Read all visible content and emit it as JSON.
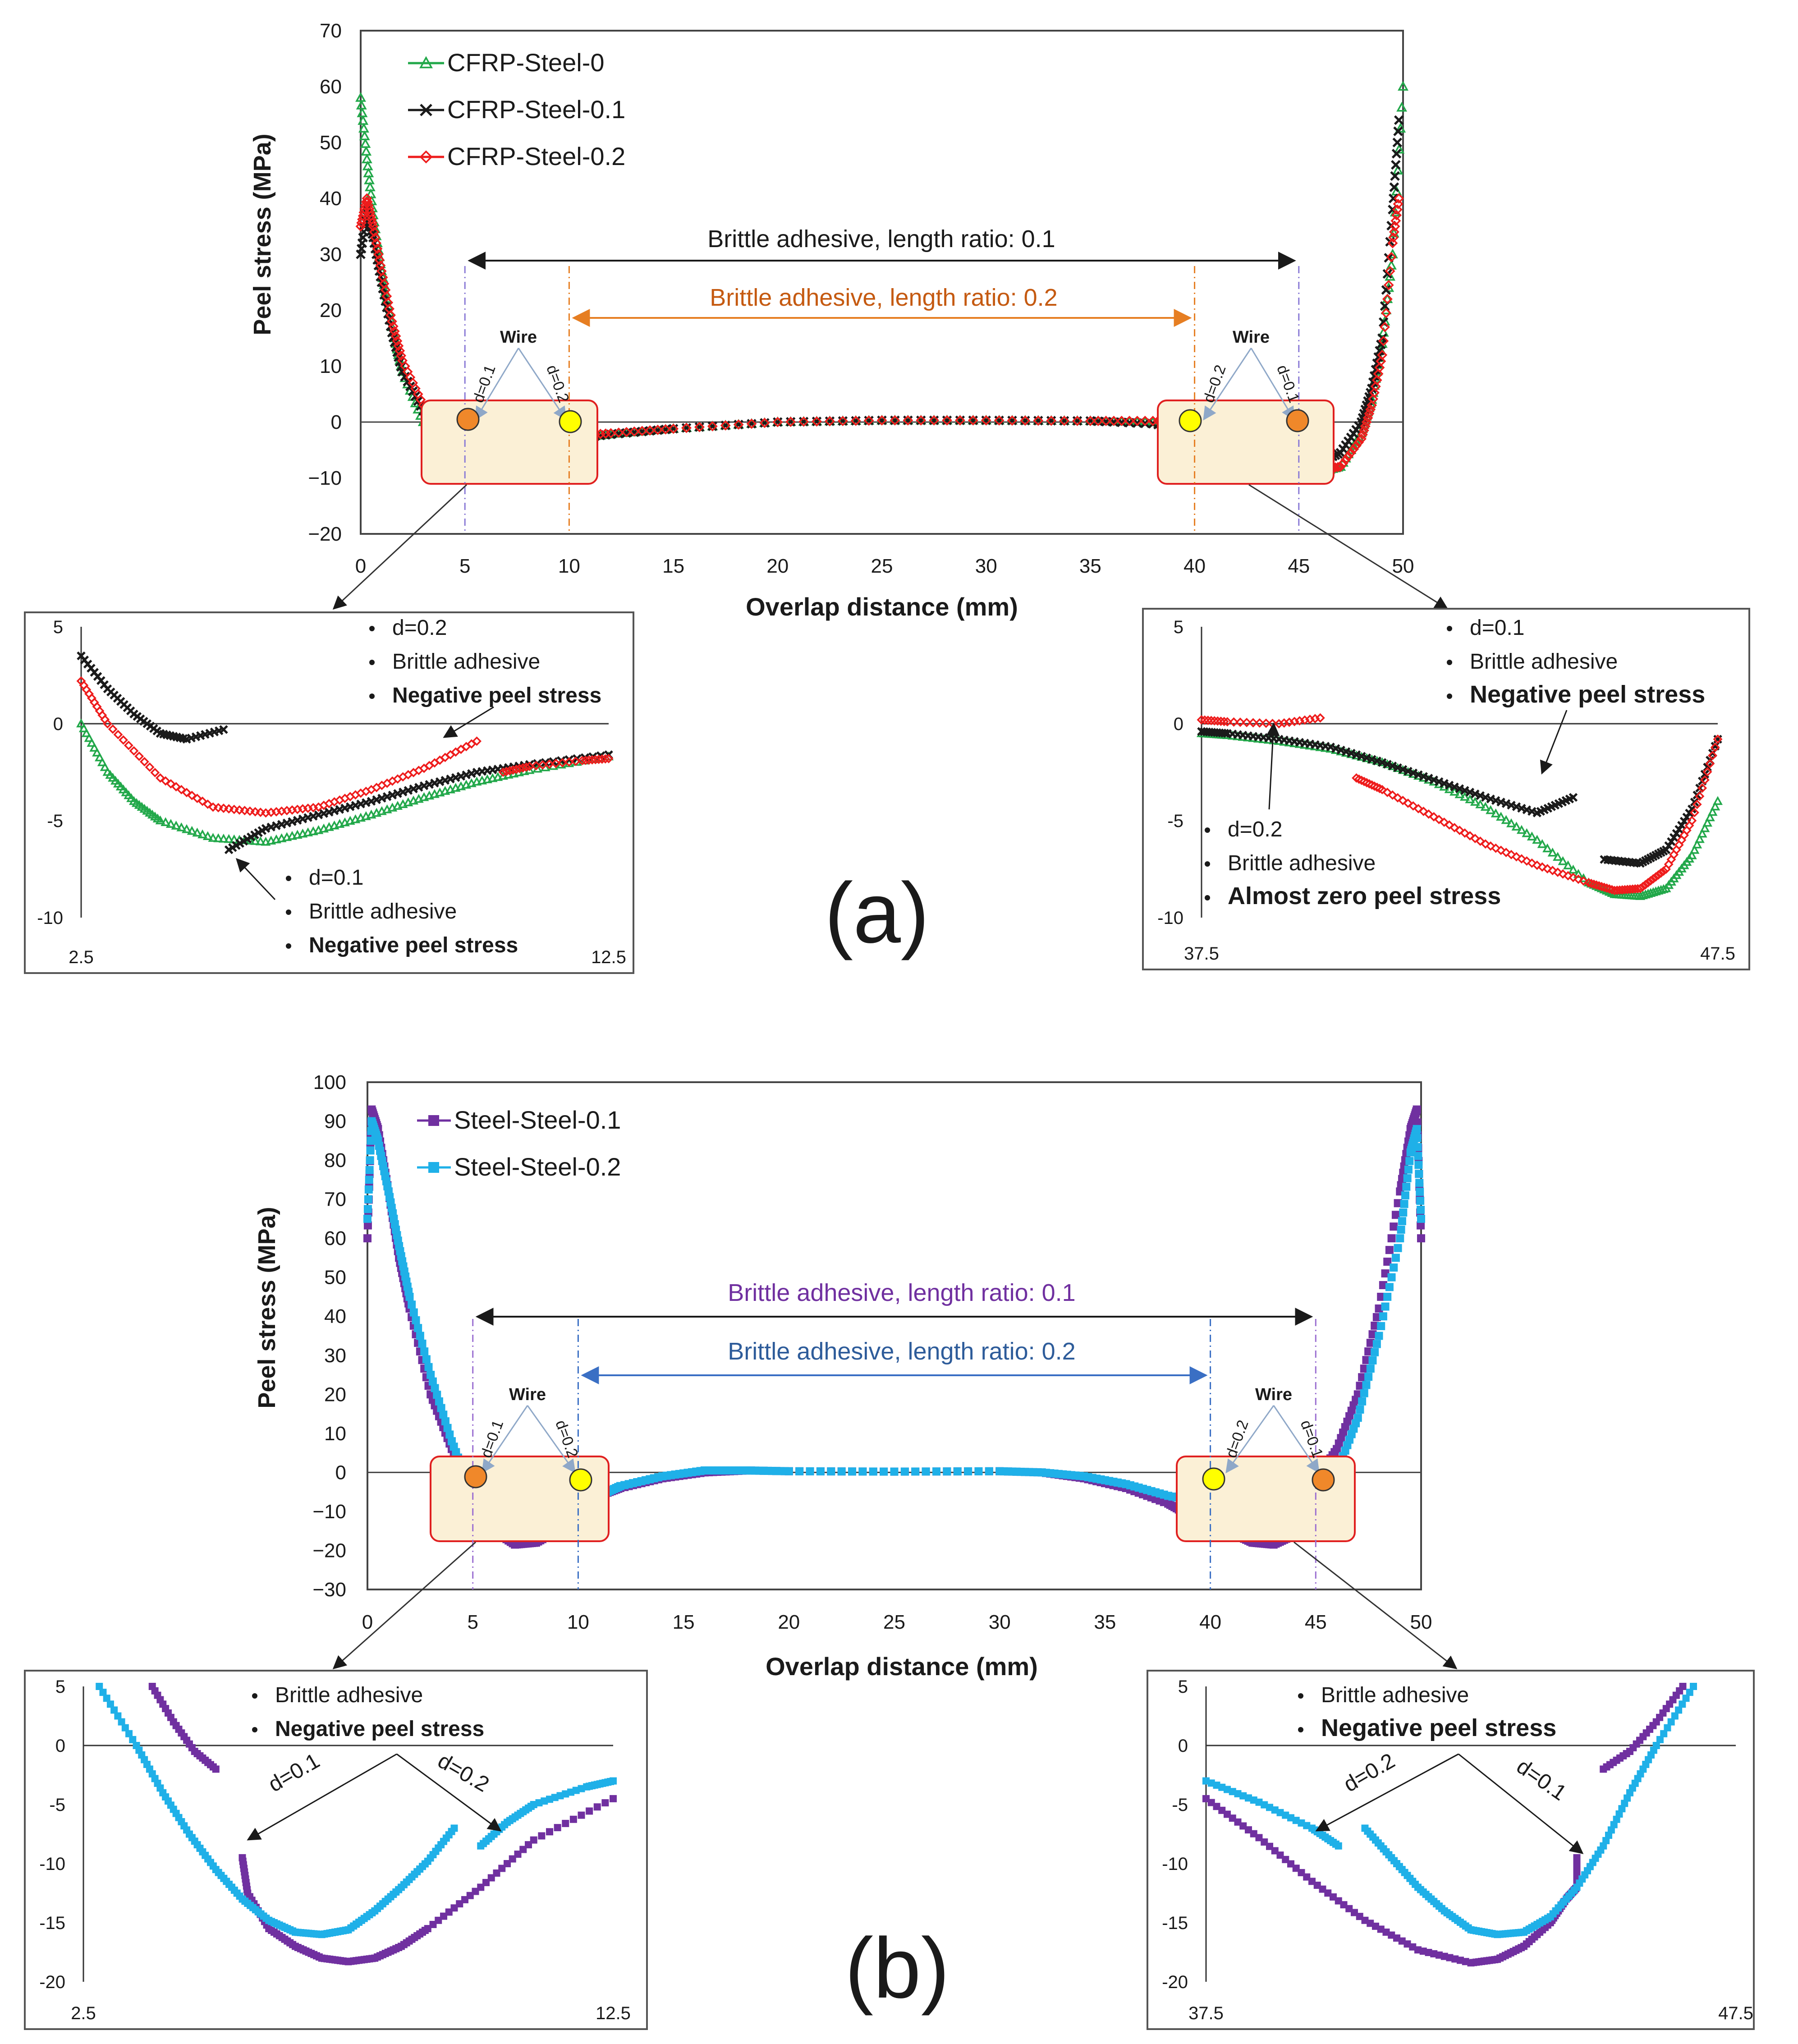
{
  "colors": {
    "green": "#22a84a",
    "black": "#1a1a1a",
    "red": "#ee1c1c",
    "purple": "#7030a0",
    "cyan": "#1fb0e8",
    "orange_text": "#c55a11",
    "orange_arrow": "#e67e22",
    "blue_text": "#2e5c9a",
    "blue_arrow": "#3a6fc4",
    "purple_dash": "#9b6fd1",
    "wire_orange": "#f0882a",
    "wire_yellow": "#ffff00",
    "highlight_fill": "#fbf0d6",
    "highlight_stroke": "#e02020"
  },
  "panel_a": {
    "label": "(a)",
    "ylabel": "Peel stress (MPa)",
    "xlabel": "Overlap distance (mm)",
    "xlim": [
      0,
      50
    ],
    "ylim": [
      -20,
      70
    ],
    "xticks": [
      "0",
      "5",
      "10",
      "15",
      "20",
      "25",
      "30",
      "35",
      "40",
      "45",
      "50"
    ],
    "yticks": [
      "70",
      "60",
      "50",
      "40",
      "30",
      "20",
      "10",
      "0",
      "−10",
      "−20"
    ],
    "legend": [
      "CFRP-Steel-0",
      "CFRP-Steel-0.1",
      "CFRP-Steel-0.2"
    ],
    "span_01": "Brittle adhesive, length ratio: 0.1",
    "span_02": "Brittle adhesive, length ratio: 0.2",
    "wire_label": "Wire",
    "d01": "d=0.1",
    "d02": "d=0.2",
    "inset_left": {
      "xticks": [
        "2.5",
        "12.5"
      ],
      "yticks": [
        "5",
        "0",
        "-5",
        "-10"
      ],
      "note_top": [
        "d=0.2",
        "Brittle adhesive",
        "Negative peel stress"
      ],
      "note_bottom": [
        "d=0.1",
        "Brittle adhesive",
        "Negative peel stress"
      ]
    },
    "inset_right": {
      "xticks": [
        "37.5",
        "47.5"
      ],
      "yticks": [
        "5",
        "0",
        "-5",
        "-10"
      ],
      "note_top": [
        "d=0.1",
        "Brittle adhesive",
        "Negative peel stress"
      ],
      "note_bottom": [
        "d=0.2",
        "Brittle adhesive",
        "Almost zero peel stress"
      ]
    }
  },
  "panel_b": {
    "label": "(b)",
    "ylabel": "Peel stress (MPa)",
    "xlabel": "Overlap distance (mm)",
    "xlim": [
      0,
      50
    ],
    "ylim": [
      -30,
      100
    ],
    "xticks": [
      "0",
      "5",
      "10",
      "15",
      "20",
      "25",
      "30",
      "35",
      "40",
      "45",
      "50"
    ],
    "yticks": [
      "100",
      "90",
      "80",
      "70",
      "60",
      "50",
      "40",
      "30",
      "20",
      "10",
      "0",
      "−10",
      "−20",
      "−30"
    ],
    "legend": [
      "Steel-Steel-0.1",
      "Steel-Steel-0.2"
    ],
    "span_01": "Brittle adhesive, length ratio: 0.1",
    "span_02": "Brittle adhesive, length ratio: 0.2",
    "wire_label": "Wire",
    "d01": "d=0.1",
    "d02": "d=0.2",
    "inset_left": {
      "xticks": [
        "2.5",
        "12.5"
      ],
      "yticks": [
        "5",
        "0",
        "-5",
        "-10",
        "-15",
        "-20"
      ],
      "note": [
        "Brittle adhesive",
        "Negative peel stress"
      ],
      "d01": "d=0.1",
      "d02": "d=0.2"
    },
    "inset_right": {
      "xticks": [
        "37.5",
        "47.5"
      ],
      "yticks": [
        "5",
        "0",
        "-5",
        "-10",
        "-15",
        "-20"
      ],
      "note": [
        "Brittle adhesive",
        "Negative peel stress"
      ],
      "d01": "d=0.1",
      "d02": "d=0.2"
    }
  },
  "chart_data": [
    {
      "type": "scatter",
      "title": "(a)",
      "xlabel": "Overlap distance (mm)",
      "ylabel": "Peel stress (MPa)",
      "xlim": [
        0,
        50
      ],
      "ylim": [
        -20,
        70
      ],
      "series": [
        {
          "name": "CFRP-Steel-0",
          "x": [
            0,
            0.3,
            0.6,
            1,
            1.5,
            2,
            3,
            4,
            5,
            6,
            7,
            8,
            9,
            10,
            12,
            15,
            20,
            25,
            30,
            35,
            38,
            40,
            42,
            44,
            45,
            46,
            47,
            48,
            48.5,
            49,
            49.5,
            50
          ],
          "y": [
            58,
            47,
            37,
            27,
            17,
            9,
            0,
            -4.5,
            -6,
            -6.2,
            -5.5,
            -4.5,
            -3.5,
            -3,
            -2.2,
            -1.2,
            0,
            0.3,
            0.3,
            0.2,
            0,
            -0.5,
            -3,
            -6,
            -7.5,
            -9,
            -8,
            -2,
            4,
            14,
            30,
            60
          ]
        },
        {
          "name": "CFRP-Steel-0.1",
          "x": [
            0,
            0.3,
            0.6,
            1,
            1.5,
            2,
            3,
            3.8,
            4.5,
            5,
            5,
            6,
            8,
            10,
            12,
            15,
            20,
            25,
            30,
            35,
            38,
            40,
            42,
            44,
            45,
            45,
            46,
            47,
            48,
            48.5,
            49,
            49.5,
            49.8
          ],
          "y": [
            30,
            38,
            33,
            25,
            16,
            9,
            2,
            0,
            -0.5,
            -0.5,
            -6.5,
            -5.5,
            -4,
            -3,
            -2.2,
            -1.2,
            0,
            0.3,
            0.3,
            0.2,
            -0.3,
            -1.5,
            -3,
            -4,
            -5,
            -7,
            -7.2,
            -5.5,
            0,
            6,
            15,
            38,
            54
          ]
        },
        {
          "name": "CFRP-Steel-0.2",
          "x": [
            0,
            0.3,
            0.6,
            1,
            1.5,
            2,
            3,
            4,
            5,
            6,
            7,
            8,
            9,
            10,
            10,
            12,
            15,
            20,
            25,
            30,
            35,
            38,
            40,
            40,
            42,
            44,
            46,
            47,
            48,
            48.5,
            49,
            49.5,
            49.8
          ],
          "y": [
            35,
            40,
            35,
            27,
            18,
            11,
            3,
            -2,
            -4.5,
            -5,
            -4.8,
            -3.8,
            -2.5,
            -1,
            -2.5,
            -2,
            -1.2,
            0,
            0.3,
            0.3,
            0.2,
            0.2,
            0.3,
            -3,
            -4.5,
            -6.5,
            -8.5,
            -8,
            -3,
            3,
            12,
            32,
            40
          ]
        }
      ]
    },
    {
      "type": "scatter",
      "title": "(b)",
      "xlabel": "Overlap distance (mm)",
      "ylabel": "Peel stress (MPa)",
      "xlim": [
        0,
        50
      ],
      "ylim": [
        -30,
        100
      ],
      "series": [
        {
          "name": "Steel-Steel-0.1",
          "x": [
            0,
            0.2,
            0.5,
            1,
            1.5,
            2,
            3,
            4,
            5,
            5,
            6,
            7,
            8,
            9,
            10,
            11,
            12,
            14,
            16,
            18,
            20,
            25,
            30,
            32,
            34,
            36,
            38,
            39,
            40,
            41,
            42,
            43,
            44,
            45,
            45,
            46,
            47,
            48,
            49,
            49.5,
            49.8,
            50
          ],
          "y": [
            60,
            93,
            88,
            72,
            55,
            42,
            20,
            6,
            -2,
            -10,
            -15,
            -18.5,
            -18,
            -15,
            -10,
            -6,
            -4,
            -1.5,
            0,
            0.5,
            0.3,
            0.2,
            0.3,
            0,
            -1.5,
            -4,
            -8,
            -11,
            -13,
            -15.5,
            -18,
            -18.5,
            -16,
            -9.5,
            -2,
            6,
            20,
            42,
            72,
            88,
            93,
            60
          ]
        },
        {
          "name": "Steel-Steel-0.2",
          "x": [
            0,
            0.2,
            0.5,
            1,
            1.5,
            2,
            3,
            4,
            5,
            6,
            7,
            8,
            9,
            10,
            10,
            11,
            12,
            14,
            16,
            18,
            20,
            25,
            30,
            32,
            34,
            36,
            38,
            40,
            40,
            41,
            42,
            43,
            44,
            45,
            46,
            47,
            48,
            49,
            49.5,
            49.8,
            50
          ],
          "y": [
            65,
            90,
            85,
            72,
            58,
            45,
            25,
            8,
            -6,
            -13,
            -16,
            -15,
            -12,
            -7,
            -8,
            -6,
            -3.5,
            -1,
            0.5,
            0.5,
            0.3,
            0.2,
            0.3,
            0,
            -1,
            -3,
            -6,
            -8,
            -7,
            -12,
            -15,
            -16,
            -14,
            -8,
            0,
            14,
            35,
            60,
            82,
            88,
            65
          ]
        }
      ]
    }
  ]
}
